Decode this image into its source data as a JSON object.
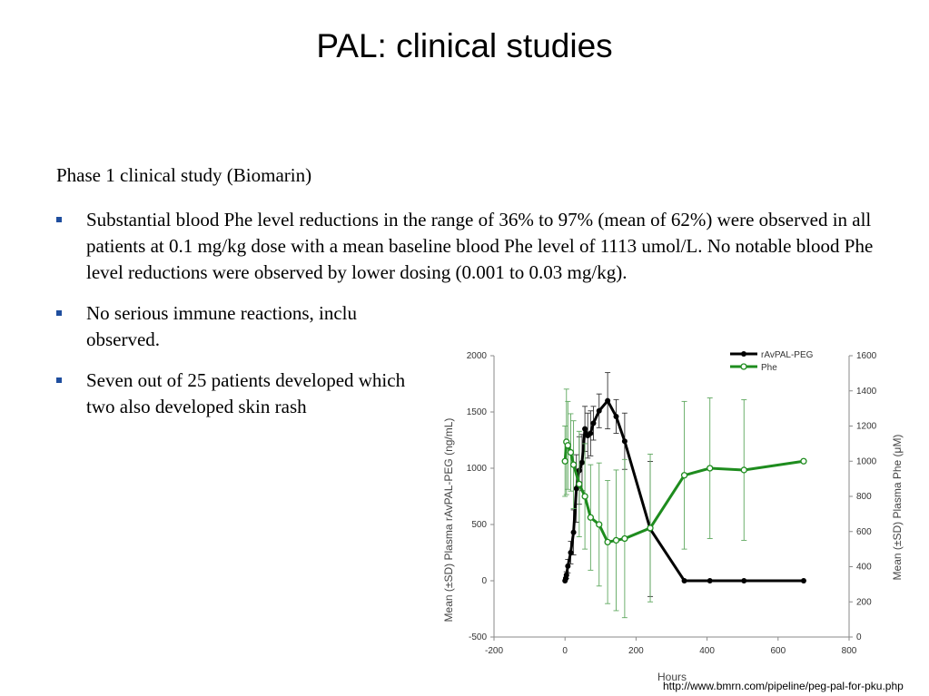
{
  "slide": {
    "title": "PAL: clinical studies",
    "intro": "Phase 1 clinical study (Biomarin)",
    "bullets": [
      "Substantial blood Phe level reductions in the range of 36% to 97% (mean of 62%) were observed in all patients at 0.1 mg/kg dose with a mean baseline blood Phe level of 1113 umol/L. No notable blood Phe level reductions were observed by lower dosing (0.001 to 0.03 mg/kg).",
      "No serious immune reactions, inclu observed.",
      "Seven out of 25 patients developed which two also developed skin rash"
    ],
    "source": "http://www.bmrn.com/pipeline/peg-pal-for-pku.php",
    "marker_color": "#1f4e9e"
  },
  "chart_data": {
    "type": "line",
    "xlabel": "Hours",
    "ylabel_left": "Mean (±SD) Plasma rAvPAL-PEG (ng/mL)",
    "ylabel_right": "Mean (±SD) Plasma Phe (μM)",
    "xlim": [
      -200,
      800
    ],
    "xticks": [
      -200,
      0,
      200,
      400,
      600,
      800
    ],
    "ylim_left": [
      -500,
      2000
    ],
    "yticks_left": [
      -500,
      0,
      500,
      1000,
      1500,
      2000
    ],
    "ylim_right": [
      0,
      1600
    ],
    "yticks_right": [
      0,
      200,
      400,
      600,
      800,
      1000,
      1200,
      1400,
      1600
    ],
    "grid": false,
    "legend_position": "top-right",
    "series": [
      {
        "name": "rAvPAL-PEG",
        "axis": "left",
        "color": "#000000",
        "marker": "filled-diamond",
        "x": [
          0,
          2,
          4,
          8,
          16,
          24,
          32,
          40,
          48,
          56,
          64,
          72,
          80,
          96,
          120,
          144,
          168,
          240,
          336,
          408,
          504,
          672
        ],
        "y": [
          0,
          20,
          50,
          130,
          250,
          430,
          820,
          980,
          1050,
          1350,
          1290,
          1310,
          1400,
          1510,
          1600,
          1460,
          1240,
          460,
          0,
          0,
          0,
          0
        ],
        "sd": [
          0,
          10,
          30,
          60,
          100,
          200,
          300,
          300,
          250,
          200,
          200,
          200,
          150,
          150,
          250,
          150,
          250,
          600,
          0,
          0,
          0,
          0
        ]
      },
      {
        "name": "Phe",
        "axis": "right",
        "color": "#1e8c1e",
        "marker": "open-diamond",
        "x": [
          0,
          4,
          8,
          16,
          24,
          40,
          56,
          72,
          96,
          120,
          144,
          168,
          240,
          336,
          408,
          504,
          672
        ],
        "y": [
          1000,
          1110,
          1090,
          1050,
          980,
          870,
          800,
          680,
          640,
          540,
          550,
          560,
          620,
          920,
          960,
          950,
          1000
        ],
        "sd": [
          200,
          300,
          250,
          220,
          250,
          300,
          300,
          300,
          350,
          350,
          400,
          450,
          420,
          420,
          400,
          400,
          0
        ]
      }
    ]
  }
}
